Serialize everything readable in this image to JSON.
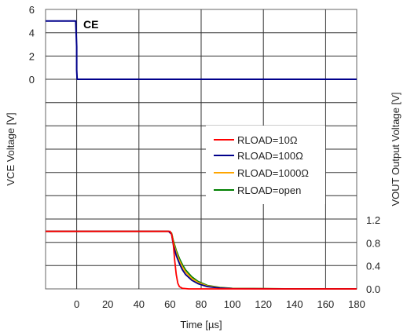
{
  "chart_data": {
    "type": "line",
    "xlabel": "Time [µs]",
    "ylabel_left": "VCE Voltage [V]",
    "ylabel_right": "VOUT Output Voltage [V]",
    "xlim": [
      -20,
      180
    ],
    "x_ticks": [
      0,
      20,
      40,
      60,
      80,
      100,
      120,
      140,
      160,
      180
    ],
    "x_tick_labels": [
      "0",
      "20",
      "40",
      "60",
      "80",
      "100",
      "120",
      "140",
      "160",
      "180"
    ],
    "upper_panel": {
      "ylim": [
        0,
        6
      ],
      "y_ticks": [
        0,
        2,
        4,
        6
      ],
      "y_tick_labels": [
        "0",
        "2",
        "4",
        "6"
      ],
      "annotation": "CE",
      "series": [
        {
          "label": "CE",
          "color": "#00008B",
          "x": [
            -20,
            -0.6,
            -0.5,
            0,
            0,
            0.3,
            180
          ],
          "y": [
            5.0,
            5.0,
            4.6,
            2.8,
            0.8,
            0.0,
            0.0
          ]
        }
      ]
    },
    "lower_panel": {
      "ylim": [
        0,
        1.2
      ],
      "y_ticks": [
        0.0,
        0.4,
        0.8,
        1.2
      ],
      "y_tick_labels": [
        "0.0",
        "0.4",
        "0.8",
        "1.2"
      ],
      "series": [
        {
          "name": "RLOAD=10Ω",
          "color": "#FF0000",
          "x": [
            -20,
            58,
            60,
            61,
            62,
            63,
            64,
            65,
            66,
            68,
            72,
            180
          ],
          "y": [
            1.0,
            1.0,
            1.0,
            0.95,
            0.8,
            0.5,
            0.25,
            0.1,
            0.04,
            0.01,
            0.0,
            0.0
          ]
        },
        {
          "name": "RLOAD=100Ω",
          "color": "#00008B",
          "x": [
            -20,
            59,
            61,
            62,
            64,
            66,
            68,
            70,
            74,
            78,
            84,
            92,
            100,
            140,
            180
          ],
          "y": [
            1.0,
            1.0,
            0.95,
            0.78,
            0.58,
            0.44,
            0.33,
            0.25,
            0.15,
            0.09,
            0.04,
            0.015,
            0.005,
            0.0,
            0.0
          ]
        },
        {
          "name": "RLOAD=1000Ω",
          "color": "#FFA500",
          "x": [
            -20,
            59,
            61,
            62,
            64,
            66,
            68,
            70,
            74,
            78,
            84,
            92,
            100,
            140,
            180
          ],
          "y": [
            1.0,
            1.0,
            0.96,
            0.82,
            0.63,
            0.49,
            0.38,
            0.29,
            0.18,
            0.11,
            0.05,
            0.02,
            0.008,
            0.0,
            0.0
          ]
        },
        {
          "name": "RLOAD=open",
          "color": "#008000",
          "x": [
            -20,
            59,
            61,
            62,
            64,
            66,
            68,
            70,
            74,
            78,
            84,
            92,
            100,
            140,
            180
          ],
          "y": [
            1.0,
            1.0,
            0.97,
            0.85,
            0.67,
            0.53,
            0.42,
            0.33,
            0.21,
            0.13,
            0.06,
            0.025,
            0.01,
            0.0,
            0.0
          ]
        }
      ]
    },
    "legend_position": "right"
  }
}
